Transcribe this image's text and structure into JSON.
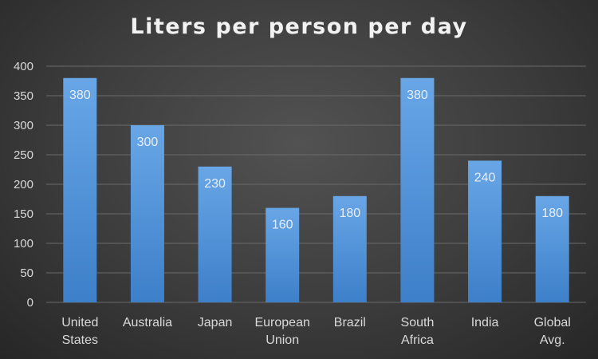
{
  "colors": {
    "bar_top": "#68a6e6",
    "bar_bottom": "#3d7fc9",
    "background": "#404040"
  },
  "chart_data": {
    "type": "bar",
    "title": "Liters per person per day",
    "xlabel": "",
    "ylabel": "",
    "categories": [
      [
        "United",
        "States"
      ],
      [
        "Australia"
      ],
      [
        "Japan"
      ],
      [
        "European",
        "Union"
      ],
      [
        "Brazil"
      ],
      [
        "South",
        "Africa"
      ],
      [
        "India"
      ],
      [
        "Global",
        "Avg."
      ]
    ],
    "values": [
      380,
      300,
      230,
      160,
      180,
      380,
      240,
      180
    ],
    "data_labels": [
      "380",
      "300",
      "230",
      "160",
      "180",
      "380",
      "240",
      "180"
    ],
    "ylim": [
      0,
      400
    ],
    "yticks": [
      0,
      50,
      100,
      150,
      200,
      250,
      300,
      350,
      400
    ],
    "grid": true,
    "legend": "none"
  }
}
